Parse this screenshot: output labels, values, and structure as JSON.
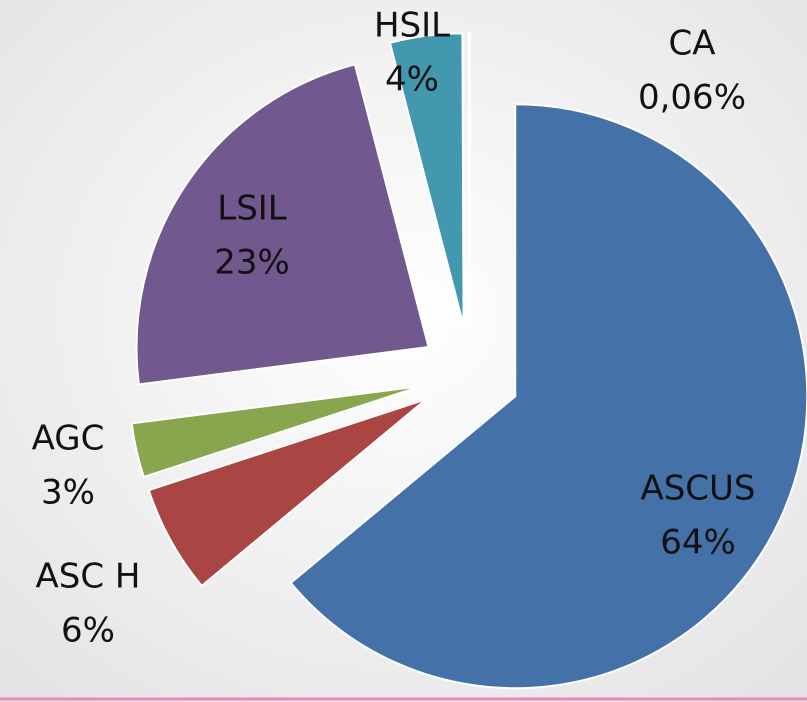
{
  "chart_data": {
    "type": "pie",
    "categories": [
      "ASCUS",
      "ASC H",
      "AGC",
      "LSIL",
      "HSIL",
      "CA"
    ],
    "values": [
      64,
      6,
      3,
      23,
      4,
      0.06
    ],
    "value_labels": [
      "64%",
      "6%",
      "3%",
      "23%",
      "4%",
      "0,06%"
    ],
    "colors": [
      "#4472a8",
      "#a94543",
      "#89a54e",
      "#71588f",
      "#4198af",
      "#db843d"
    ]
  }
}
